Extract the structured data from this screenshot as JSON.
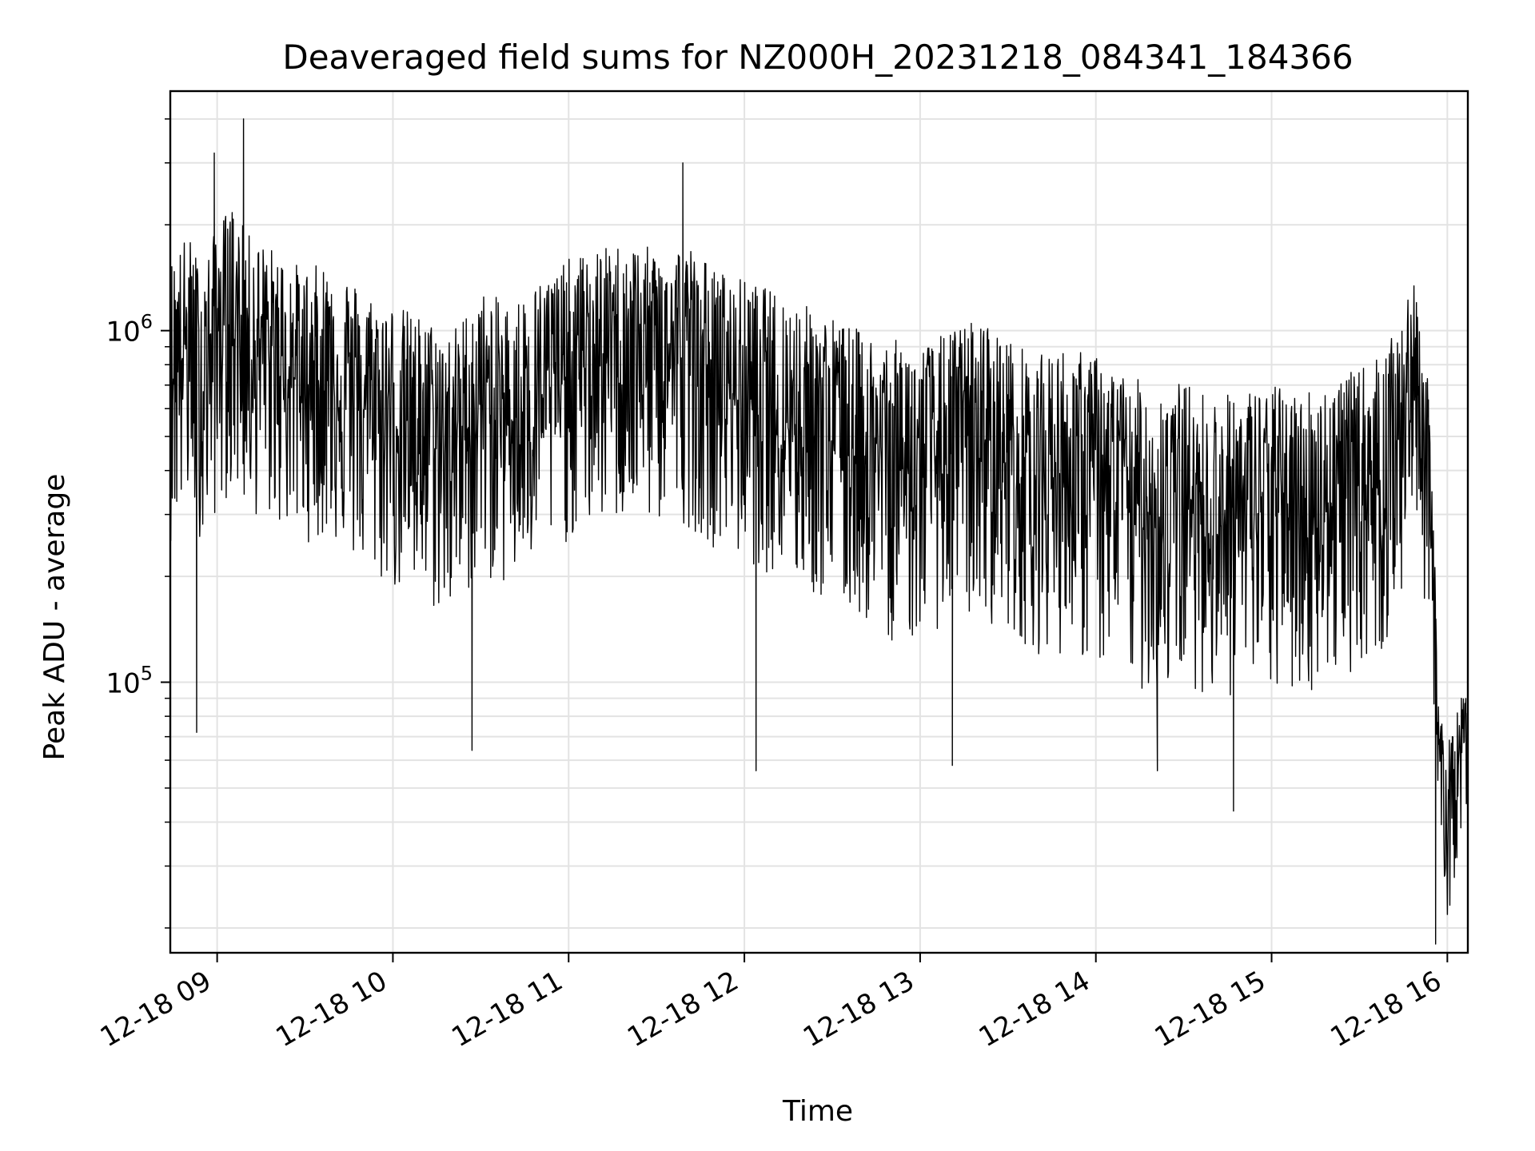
{
  "colors": {
    "series": "#000000",
    "grid": "#e3e3e3",
    "background": "#ffffff"
  },
  "chart_data": {
    "type": "line",
    "title": "Deaveraged field sums for NZ000H_20231218_084341_184366",
    "xlabel": "Time",
    "ylabel": "Peak ADU - average",
    "yscale": "log",
    "ylim": [
      17000,
      4800000
    ],
    "xlim": [
      "2023-12-18 08:44",
      "2023-12-18 16:07"
    ],
    "grid": true,
    "x_ticks": [
      {
        "value": "2023-12-18 09:00",
        "label": "12-18 09"
      },
      {
        "value": "2023-12-18 10:00",
        "label": "12-18 10"
      },
      {
        "value": "2023-12-18 11:00",
        "label": "12-18 11"
      },
      {
        "value": "2023-12-18 12:00",
        "label": "12-18 12"
      },
      {
        "value": "2023-12-18 13:00",
        "label": "12-18 13"
      },
      {
        "value": "2023-12-18 14:00",
        "label": "12-18 14"
      },
      {
        "value": "2023-12-18 15:00",
        "label": "12-18 15"
      },
      {
        "value": "2023-12-18 16:00",
        "label": "12-18 16"
      }
    ],
    "y_ticks": [
      {
        "value": 100000,
        "base": "10",
        "exp": "5"
      },
      {
        "value": 1000000,
        "base": "10",
        "exp": "6"
      }
    ],
    "series": [
      {
        "x": [
          "2023-12-18 08:44",
          "2023-12-18 08:50",
          "2023-12-18 08:55",
          "2023-12-18 09:00",
          "2023-12-18 09:05",
          "2023-12-18 09:10",
          "2023-12-18 09:20",
          "2023-12-18 09:30",
          "2023-12-18 09:40",
          "2023-12-18 09:50",
          "2023-12-18 10:00",
          "2023-12-18 10:10",
          "2023-12-18 10:20",
          "2023-12-18 10:30",
          "2023-12-18 10:40",
          "2023-12-18 10:50",
          "2023-12-18 11:00",
          "2023-12-18 11:10",
          "2023-12-18 11:20",
          "2023-12-18 11:30",
          "2023-12-18 11:40",
          "2023-12-18 11:50",
          "2023-12-18 12:00",
          "2023-12-18 12:10",
          "2023-12-18 12:20",
          "2023-12-18 12:30",
          "2023-12-18 12:40",
          "2023-12-18 12:50",
          "2023-12-18 13:00",
          "2023-12-18 13:10",
          "2023-12-18 13:20",
          "2023-12-18 13:30",
          "2023-12-18 13:40",
          "2023-12-18 13:50",
          "2023-12-18 14:00",
          "2023-12-18 14:10",
          "2023-12-18 14:20",
          "2023-12-18 14:30",
          "2023-12-18 14:40",
          "2023-12-18 14:50",
          "2023-12-18 15:00",
          "2023-12-18 15:10",
          "2023-12-18 15:20",
          "2023-12-18 15:30",
          "2023-12-18 15:40",
          "2023-12-18 15:45",
          "2023-12-18 15:50",
          "2023-12-18 15:53",
          "2023-12-18 15:55",
          "2023-12-18 15:57",
          "2023-12-18 16:00",
          "2023-12-18 16:03",
          "2023-12-18 16:07"
        ],
        "y": [
          800000,
          900000,
          700000,
          1000000,
          1100000,
          900000,
          800000,
          700000,
          750000,
          600000,
          550000,
          500000,
          450000,
          600000,
          550000,
          650000,
          750000,
          800000,
          850000,
          800000,
          850000,
          700000,
          650000,
          600000,
          550000,
          500000,
          450000,
          420000,
          400000,
          450000,
          480000,
          420000,
          380000,
          400000,
          370000,
          330000,
          300000,
          320000,
          280000,
          300000,
          310000,
          300000,
          320000,
          350000,
          400000,
          600000,
          750000,
          400000,
          200000,
          70000,
          40000,
          55000,
          75000
        ],
        "band_low": [
          250000,
          300000,
          250000,
          300000,
          350000,
          300000,
          280000,
          250000,
          250000,
          200000,
          180000,
          160000,
          150000,
          200000,
          180000,
          220000,
          250000,
          280000,
          280000,
          280000,
          280000,
          240000,
          220000,
          200000,
          180000,
          160000,
          150000,
          130000,
          130000,
          150000,
          150000,
          140000,
          120000,
          120000,
          110000,
          100000,
          90000,
          100000,
          90000,
          90000,
          90000,
          90000,
          100000,
          110000,
          120000,
          180000,
          250000,
          150000,
          80000,
          35000,
          20000,
          30000,
          45000
        ],
        "band_high": [
          1600000,
          1900000,
          1500000,
          2000000,
          2300000,
          1900000,
          1700000,
          1500000,
          1600000,
          1300000,
          1200000,
          1100000,
          1000000,
          1300000,
          1200000,
          1400000,
          1600000,
          1700000,
          1800000,
          1700000,
          1800000,
          1500000,
          1400000,
          1300000,
          1200000,
          1100000,
          1000000,
          950000,
          900000,
          1000000,
          1100000,
          950000,
          850000,
          900000,
          850000,
          750000,
          700000,
          720000,
          650000,
          680000,
          700000,
          680000,
          720000,
          780000,
          900000,
          1200000,
          1400000,
          800000,
          350000,
          100000,
          65000,
          85000,
          100000
        ],
        "spikes_up": [
          {
            "x": "2023-12-18 08:59",
            "y": 3200000
          },
          {
            "x": "2023-12-18 09:09",
            "y": 4000000
          },
          {
            "x": "2023-12-18 11:39",
            "y": 3000000
          }
        ],
        "spikes_down": [
          {
            "x": "2023-12-18 08:53",
            "y": 72000
          },
          {
            "x": "2023-12-18 10:27",
            "y": 64000
          },
          {
            "x": "2023-12-18 12:04",
            "y": 56000
          },
          {
            "x": "2023-12-18 13:11",
            "y": 58000
          },
          {
            "x": "2023-12-18 14:21",
            "y": 56000
          },
          {
            "x": "2023-12-18 14:47",
            "y": 43000
          },
          {
            "x": "2023-12-18 15:56",
            "y": 18000
          }
        ]
      }
    ]
  }
}
